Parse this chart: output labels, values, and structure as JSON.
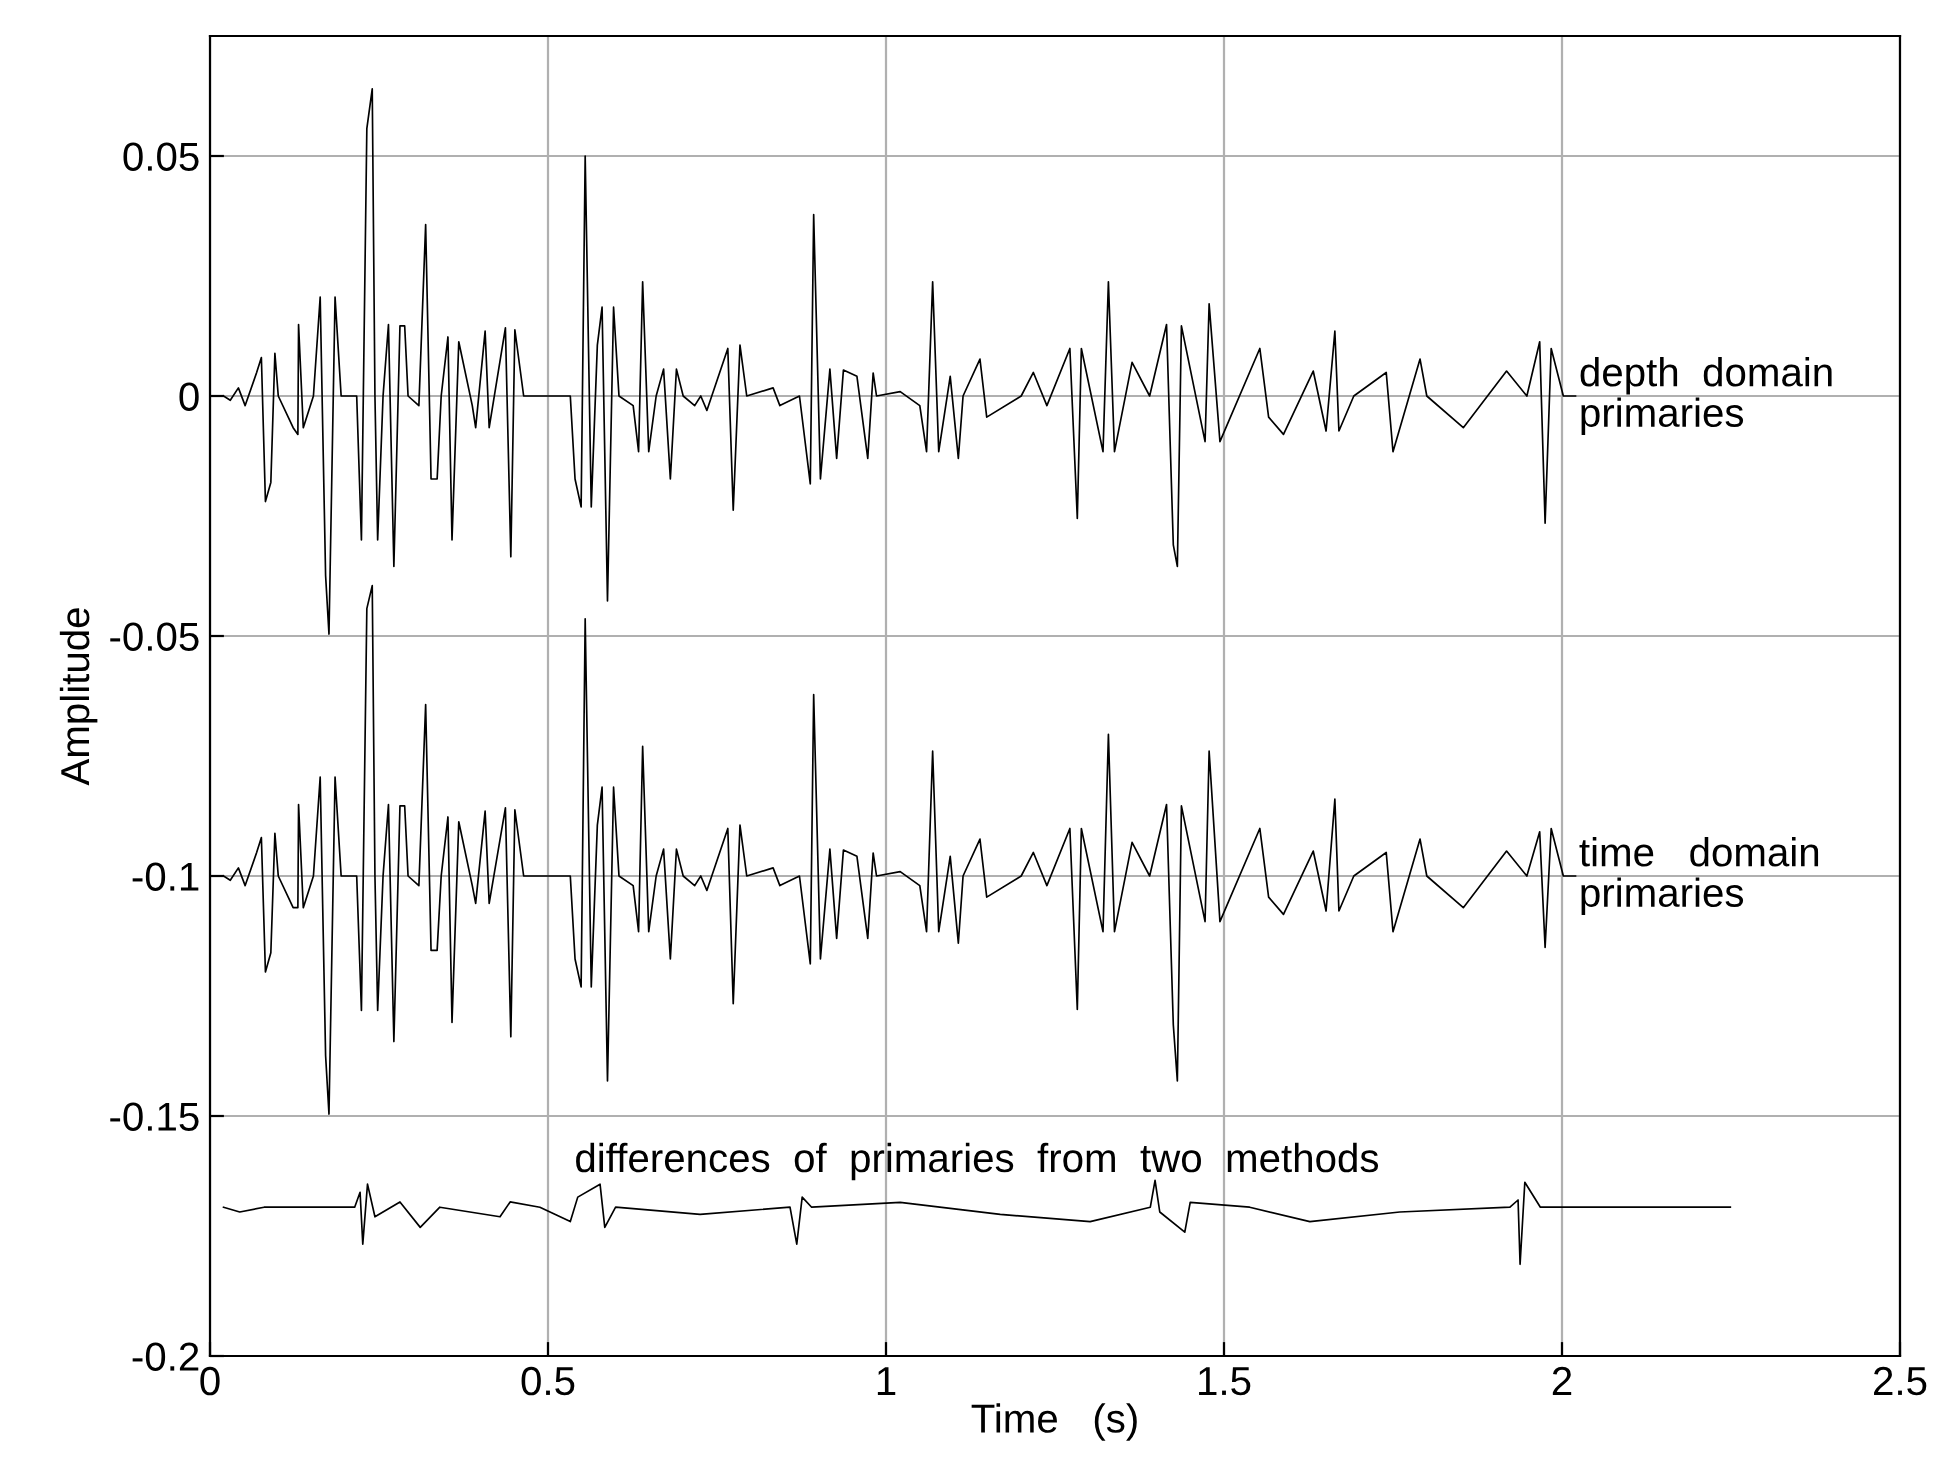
{
  "chart_data": {
    "type": "line",
    "xlabel": "Time   (s)",
    "ylabel": "Amplitude",
    "xlim": [
      0,
      2.5
    ],
    "xticks": [
      0,
      0.5,
      1,
      1.5,
      2,
      2.5
    ],
    "ylim": [
      -0.2,
      0.075
    ],
    "yticks": [
      -0.2,
      -0.15,
      -0.1,
      -0.05,
      0,
      0.05
    ],
    "grid": true,
    "legend": false,
    "marker": "none",
    "line_style": "solid",
    "series": [
      {
        "name": "depth  domain\nprimaries",
        "color": "#000000",
        "x": [
          0.02,
          0.03,
          0.042,
          0.052,
          0.069,
          0.076,
          0.082,
          0.09,
          0.096,
          0.101,
          0.123,
          0.13,
          0.131,
          0.138,
          0.153,
          0.163,
          0.171,
          0.176,
          0.185,
          0.194,
          0.217,
          0.224,
          0.232,
          0.24,
          0.244,
          0.248,
          0.256,
          0.264,
          0.272,
          0.281,
          0.288,
          0.293,
          0.309,
          0.319,
          0.327,
          0.336,
          0.342,
          0.352,
          0.358,
          0.368,
          0.388,
          0.393,
          0.407,
          0.413,
          0.437,
          0.445,
          0.451,
          0.464,
          0.533,
          0.54,
          0.549,
          0.555,
          0.564,
          0.573,
          0.58,
          0.588,
          0.597,
          0.605,
          0.626,
          0.634,
          0.64,
          0.649,
          0.66,
          0.671,
          0.681,
          0.69,
          0.7,
          0.717,
          0.726,
          0.735,
          0.766,
          0.774,
          0.784,
          0.794,
          0.833,
          0.843,
          0.872,
          0.888,
          0.893,
          0.903,
          0.917,
          0.927,
          0.937,
          0.957,
          0.973,
          0.981,
          0.986,
          1.021,
          1.05,
          1.06,
          1.069,
          1.078,
          1.095,
          1.107,
          1.114,
          1.139,
          1.149,
          1.2,
          1.218,
          1.238,
          1.272,
          1.283,
          1.289,
          1.321,
          1.329,
          1.338,
          1.364,
          1.39,
          1.415,
          1.425,
          1.431,
          1.437,
          1.472,
          1.478,
          1.494,
          1.553,
          1.566,
          1.588,
          1.632,
          1.651,
          1.664,
          1.67,
          1.692,
          1.74,
          1.75,
          1.79,
          1.8,
          1.854,
          1.918,
          1.948,
          1.967,
          1.975,
          1.984,
          2.002,
          2.02
        ],
        "values": [
          0,
          -0.0009,
          0.0017,
          -0.002,
          0.0049,
          0.008,
          -0.022,
          -0.018,
          0.0089,
          0,
          -0.0066,
          -0.008,
          0.0149,
          -0.0066,
          0,
          0.0206,
          -0.0374,
          -0.0496,
          0.0206,
          0,
          0,
          -0.03,
          0.0557,
          0.064,
          0,
          -0.03,
          0,
          0.0149,
          -0.0355,
          0.0146,
          0.0146,
          0,
          -0.002,
          0.0357,
          -0.0173,
          -0.0173,
          0,
          0.0123,
          -0.03,
          0.0113,
          -0.002,
          -0.0066,
          0.0135,
          -0.0066,
          0.0142,
          -0.0335,
          0.0138,
          0,
          0,
          -0.0173,
          -0.0231,
          0.05,
          -0.0231,
          0.0106,
          0.0185,
          -0.0427,
          0.0185,
          0,
          -0.002,
          -0.0116,
          0.0238,
          -0.0116,
          0,
          0.0056,
          -0.0173,
          0.0056,
          0,
          -0.002,
          0,
          -0.003,
          0.0099,
          -0.0238,
          0.0106,
          0,
          0.0017,
          -0.002,
          0,
          -0.0183,
          0.0378,
          -0.0173,
          0.0056,
          -0.013,
          0.0054,
          0.0041,
          -0.013,
          0.0048,
          0,
          0.0009,
          -0.002,
          -0.0116,
          0.0238,
          -0.0116,
          0.0041,
          -0.013,
          0,
          0.0077,
          -0.0044,
          0,
          0.0049,
          -0.002,
          0.0099,
          -0.0255,
          0.0099,
          -0.0116,
          0.0238,
          -0.0116,
          0.007,
          0,
          0.0149,
          -0.031,
          -0.0355,
          0.0146,
          -0.0095,
          0.0192,
          -0.0095,
          0.0099,
          -0.0044,
          -0.008,
          0.0052,
          -0.0073,
          0.0135,
          -0.0073,
          0,
          0.0049,
          -0.0116,
          0.0077,
          0,
          -0.0066,
          0.0052,
          0,
          0.0113,
          -0.0265,
          0.0099,
          0,
          0
        ]
      },
      {
        "name": "time   domain\nprimaries",
        "color": "#000000",
        "x": [
          0.02,
          0.03,
          0.042,
          0.052,
          0.069,
          0.076,
          0.082,
          0.09,
          0.096,
          0.101,
          0.123,
          0.13,
          0.131,
          0.138,
          0.153,
          0.163,
          0.171,
          0.176,
          0.185,
          0.194,
          0.217,
          0.224,
          0.232,
          0.24,
          0.244,
          0.248,
          0.256,
          0.264,
          0.272,
          0.281,
          0.288,
          0.293,
          0.309,
          0.319,
          0.327,
          0.336,
          0.342,
          0.352,
          0.358,
          0.368,
          0.388,
          0.393,
          0.407,
          0.413,
          0.437,
          0.445,
          0.451,
          0.464,
          0.533,
          0.54,
          0.549,
          0.555,
          0.564,
          0.573,
          0.58,
          0.588,
          0.597,
          0.605,
          0.626,
          0.634,
          0.64,
          0.649,
          0.66,
          0.671,
          0.681,
          0.69,
          0.7,
          0.717,
          0.726,
          0.735,
          0.766,
          0.774,
          0.784,
          0.794,
          0.833,
          0.843,
          0.872,
          0.888,
          0.893,
          0.903,
          0.917,
          0.927,
          0.937,
          0.957,
          0.973,
          0.981,
          0.986,
          1.021,
          1.05,
          1.06,
          1.069,
          1.078,
          1.095,
          1.107,
          1.114,
          1.139,
          1.149,
          1.2,
          1.218,
          1.238,
          1.272,
          1.283,
          1.289,
          1.321,
          1.329,
          1.338,
          1.364,
          1.39,
          1.415,
          1.425,
          1.431,
          1.437,
          1.472,
          1.478,
          1.494,
          1.553,
          1.566,
          1.588,
          1.632,
          1.651,
          1.664,
          1.67,
          1.692,
          1.74,
          1.75,
          1.79,
          1.8,
          1.854,
          1.918,
          1.948,
          1.967,
          1.975,
          1.984,
          2.002,
          2.02
        ],
        "values": [
          -0.1,
          -0.1009,
          -0.0983,
          -0.102,
          -0.0951,
          -0.092,
          -0.12,
          -0.116,
          -0.0911,
          -0.1,
          -0.1066,
          -0.1066,
          -0.0851,
          -0.1066,
          -0.1,
          -0.0794,
          -0.1374,
          -0.1496,
          -0.0794,
          -0.1,
          -0.1,
          -0.128,
          -0.0443,
          -0.0395,
          -0.1,
          -0.128,
          -0.1,
          -0.0851,
          -0.1345,
          -0.0854,
          -0.0854,
          -0.1,
          -0.102,
          -0.0643,
          -0.1155,
          -0.1155,
          -0.1,
          -0.0877,
          -0.1305,
          -0.0887,
          -0.102,
          -0.1057,
          -0.0865,
          -0.1057,
          -0.0858,
          -0.1335,
          -0.0862,
          -0.1,
          -0.1,
          -0.1173,
          -0.1231,
          -0.0464,
          -0.1231,
          -0.0894,
          -0.0815,
          -0.1427,
          -0.0815,
          -0.1,
          -0.102,
          -0.1116,
          -0.073,
          -0.1116,
          -0.1,
          -0.0944,
          -0.1173,
          -0.0944,
          -0.1,
          -0.102,
          -0.1,
          -0.103,
          -0.0901,
          -0.1266,
          -0.0894,
          -0.1,
          -0.0983,
          -0.102,
          -0.1,
          -0.1183,
          -0.0622,
          -0.1173,
          -0.0944,
          -0.113,
          -0.0946,
          -0.0959,
          -0.113,
          -0.0952,
          -0.1,
          -0.0991,
          -0.102,
          -0.1116,
          -0.074,
          -0.1116,
          -0.0959,
          -0.114,
          -0.1,
          -0.0923,
          -0.1044,
          -0.1,
          -0.0951,
          -0.102,
          -0.0901,
          -0.1278,
          -0.0901,
          -0.1116,
          -0.0705,
          -0.1116,
          -0.093,
          -0.1,
          -0.0851,
          -0.131,
          -0.1427,
          -0.0854,
          -0.1095,
          -0.074,
          -0.1095,
          -0.0901,
          -0.1044,
          -0.108,
          -0.0948,
          -0.1073,
          -0.084,
          -0.1073,
          -0.1,
          -0.0951,
          -0.1116,
          -0.0923,
          -0.1,
          -0.1066,
          -0.0948,
          -0.1,
          -0.0908,
          -0.1149,
          -0.0901,
          -0.1,
          -0.1
        ]
      },
      {
        "name": "differences  of  primaries  from  two  methods",
        "color": "#000000",
        "x": [
          0.02,
          0.044,
          0.08,
          0.214,
          0.222,
          0.226,
          0.233,
          0.244,
          0.281,
          0.311,
          0.34,
          0.429,
          0.444,
          0.488,
          0.533,
          0.544,
          0.577,
          0.584,
          0.6,
          0.725,
          0.858,
          0.868,
          0.876,
          0.89,
          1.021,
          1.169,
          1.302,
          1.391,
          1.398,
          1.405,
          1.442,
          1.45,
          1.538,
          1.627,
          1.76,
          1.923,
          1.935,
          1.938,
          1.945,
          1.968,
          2.249
        ],
        "values": [
          -0.169,
          -0.17,
          -0.169,
          -0.169,
          -0.1659,
          -0.1767,
          -0.1642,
          -0.171,
          -0.1679,
          -0.1732,
          -0.169,
          -0.171,
          -0.1679,
          -0.169,
          -0.172,
          -0.1669,
          -0.1642,
          -0.1732,
          -0.169,
          -0.1705,
          -0.169,
          -0.1767,
          -0.1669,
          -0.169,
          -0.168,
          -0.1705,
          -0.172,
          -0.169,
          -0.1634,
          -0.17,
          -0.1742,
          -0.168,
          -0.169,
          -0.172,
          -0.17,
          -0.169,
          -0.1675,
          -0.1809,
          -0.1638,
          -0.169,
          -0.169
        ]
      }
    ]
  }
}
